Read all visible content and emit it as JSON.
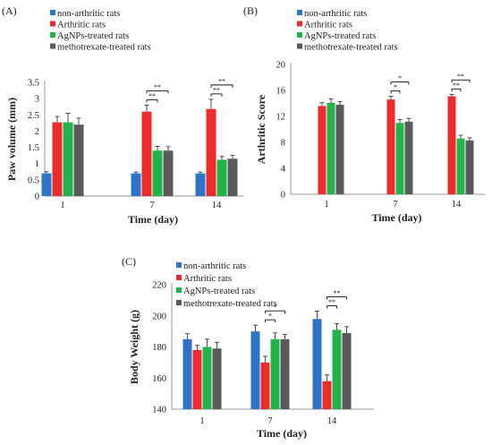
{
  "colors": {
    "non_arthritic": "#2e75c9",
    "arthritic": "#ec2b2b",
    "agnps": "#22b34b",
    "methotrexate": "#5a5a5a",
    "axis": "#9a9a9a",
    "errorbar": "#222222"
  },
  "chart_data": [
    {
      "type": "bar",
      "panel_label": "(A)",
      "title": "",
      "xlabel": "Time (day)",
      "ylabel": "Paw volume (mm)",
      "ylim": [
        0,
        3.5
      ],
      "yticks": [
        "0",
        "0.5",
        "1",
        "1.5",
        "2",
        "2.5",
        "3",
        "3.5"
      ],
      "categories": [
        "1",
        "7",
        "14"
      ],
      "legend_position": "top-left",
      "series": [
        {
          "name": "non-arthritic rats",
          "color_key": "non_arthritic",
          "values": [
            0.7,
            0.7,
            0.7
          ],
          "errors": [
            0.05,
            0.04,
            0.04
          ]
        },
        {
          "name": "Arthritic rats",
          "color_key": "arthritic",
          "values": [
            2.27,
            2.6,
            2.68
          ],
          "errors": [
            0.18,
            0.2,
            0.3
          ]
        },
        {
          "name": "AgNPs-treated rats",
          "color_key": "agnps",
          "values": [
            2.27,
            1.4,
            1.12
          ],
          "errors": [
            0.28,
            0.13,
            0.1
          ]
        },
        {
          "name": "methotrexate-treated rats",
          "color_key": "methotrexate",
          "values": [
            2.2,
            1.4,
            1.15
          ],
          "errors": [
            0.2,
            0.12,
            0.1
          ]
        }
      ],
      "significance": [
        {
          "category": 1,
          "from": 1,
          "to": 2,
          "label": "**",
          "level": 0
        },
        {
          "category": 1,
          "from": 1,
          "to": 3,
          "label": "**",
          "level": 1
        },
        {
          "category": 2,
          "from": 1,
          "to": 2,
          "label": "**",
          "level": 0
        },
        {
          "category": 2,
          "from": 1,
          "to": 3,
          "label": "**",
          "level": 1
        }
      ]
    },
    {
      "type": "bar",
      "panel_label": "(B)",
      "title": "",
      "xlabel": "Time (day)",
      "ylabel": "Arthritic Score",
      "ylim": [
        0,
        20
      ],
      "yticks": [
        "0",
        "4",
        "8",
        "12",
        "16",
        "20"
      ],
      "categories": [
        "1",
        "7",
        "14"
      ],
      "legend_position": "top-left",
      "series": [
        {
          "name": "non-arthritic rats",
          "color_key": "non_arthritic",
          "values": [
            0,
            0,
            0
          ],
          "errors": [
            0,
            0,
            0
          ]
        },
        {
          "name": "Arthritic rats",
          "color_key": "arthritic",
          "values": [
            13.6,
            14.6,
            15.1
          ],
          "errors": [
            0.5,
            0.5,
            0.3
          ]
        },
        {
          "name": "AgNPs-treated rats",
          "color_key": "agnps",
          "values": [
            14.1,
            11.0,
            8.6
          ],
          "errors": [
            0.6,
            0.5,
            0.5
          ]
        },
        {
          "name": "methotrexate-treated rats",
          "color_key": "methotrexate",
          "values": [
            13.8,
            11.2,
            8.3
          ],
          "errors": [
            0.5,
            0.5,
            0.4
          ]
        }
      ],
      "significance": [
        {
          "category": 1,
          "from": 1,
          "to": 2,
          "label": "*",
          "level": 0
        },
        {
          "category": 1,
          "from": 1,
          "to": 3,
          "label": "*",
          "level": 1
        },
        {
          "category": 2,
          "from": 1,
          "to": 2,
          "label": "**",
          "level": 0
        },
        {
          "category": 2,
          "from": 1,
          "to": 3,
          "label": "**",
          "level": 1
        }
      ]
    },
    {
      "type": "bar",
      "panel_label": "(C)",
      "title": "",
      "xlabel": "Time (day)",
      "ylabel": "Body Weight (g)",
      "ylim": [
        140,
        220
      ],
      "yticks": [
        "140",
        "160",
        "180",
        "200",
        "220"
      ],
      "categories": [
        "1",
        "7",
        "14"
      ],
      "legend_position": "top-left",
      "series": [
        {
          "name": "non-arthritic rats",
          "color_key": "non_arthritic",
          "values": [
            185,
            190,
            198
          ],
          "errors": [
            3.5,
            4,
            5
          ]
        },
        {
          "name": "Arthritic rats",
          "color_key": "arthritic",
          "values": [
            178,
            170,
            158
          ],
          "errors": [
            3,
            4,
            4
          ]
        },
        {
          "name": "AgNPs-treated rats",
          "color_key": "agnps",
          "values": [
            180,
            185,
            191
          ],
          "errors": [
            5,
            4,
            4
          ]
        },
        {
          "name": "methotrexate-treated rats",
          "color_key": "methotrexate",
          "values": [
            179,
            185,
            189
          ],
          "errors": [
            4,
            3,
            4
          ]
        }
      ],
      "significance": [
        {
          "category": 1,
          "from": 1,
          "to": 2,
          "label": "*",
          "level": 0
        },
        {
          "category": 1,
          "from": 1,
          "to": 3,
          "label": "*",
          "level": 1
        },
        {
          "category": 2,
          "from": 1,
          "to": 2,
          "label": "**",
          "level": 0
        },
        {
          "category": 2,
          "from": 1,
          "to": 3,
          "label": "**",
          "level": 1
        }
      ]
    }
  ]
}
